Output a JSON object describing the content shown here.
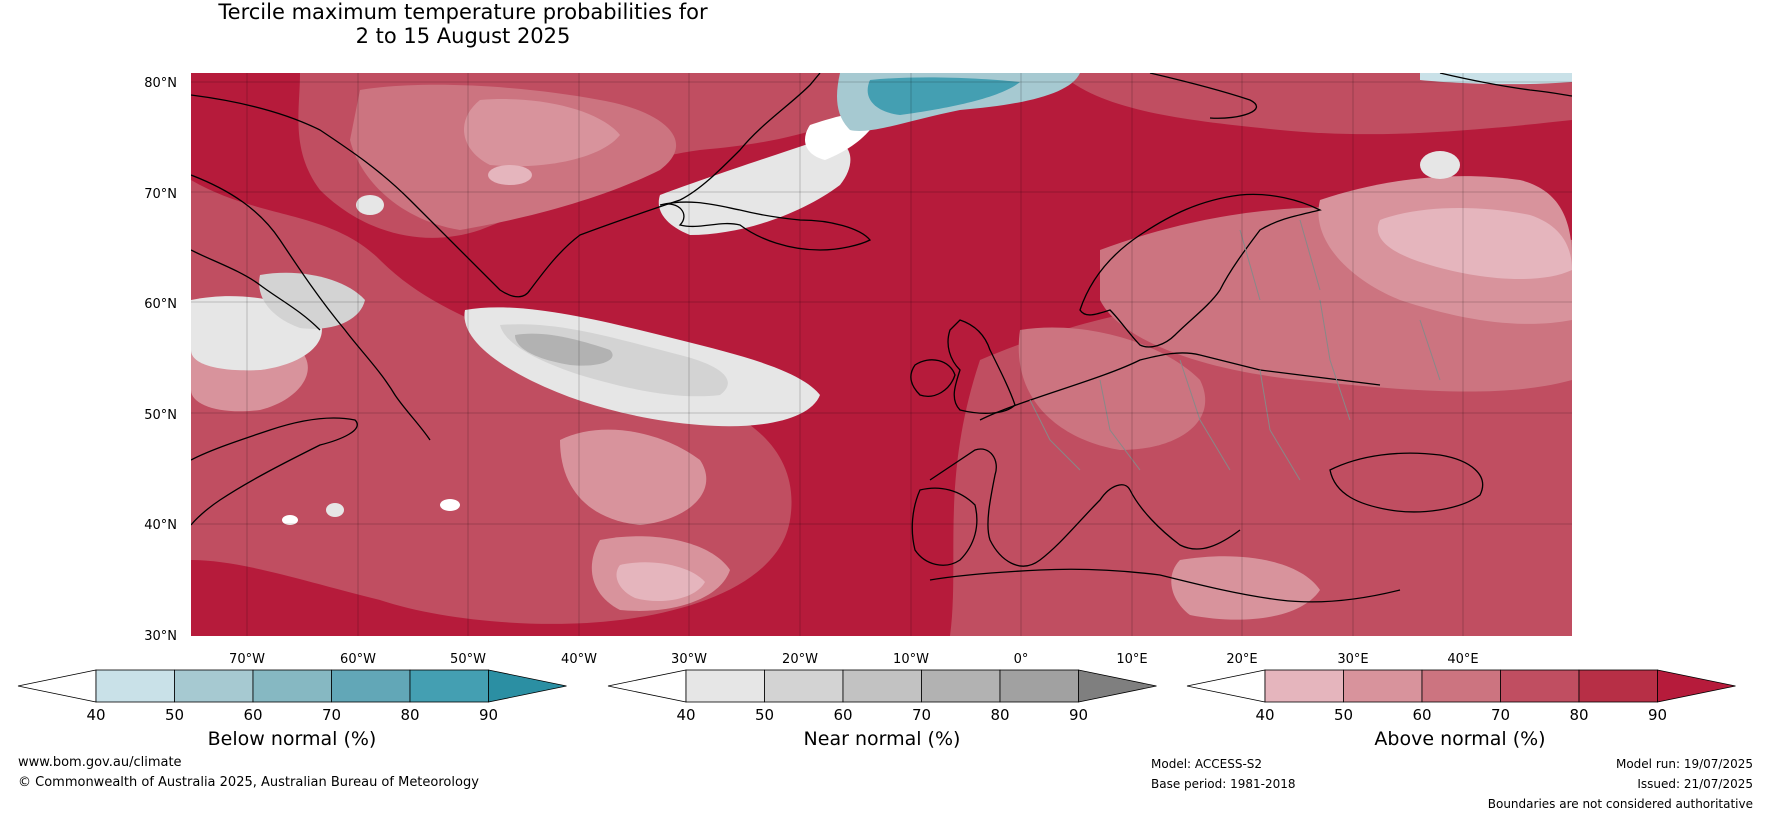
{
  "title": {
    "line1": "Tercile maximum temperature probabilities for",
    "line2": "2 to 15 August 2025"
  },
  "lat_labels": [
    "80°N",
    "70°N",
    "60°N",
    "50°N",
    "40°N",
    "30°N"
  ],
  "lon_labels": [
    "70°W",
    "60°W",
    "50°W",
    "40°W",
    "30°W",
    "20°W",
    "10°W",
    "0°",
    "10°E",
    "20°E",
    "30°E",
    "40°E"
  ],
  "colorbars": [
    {
      "label": "Below normal (%)",
      "ticks": [
        "40",
        "50",
        "60",
        "70",
        "80",
        "90"
      ],
      "colors": [
        "#ffffff",
        "#c9e1e8",
        "#a6c9d1",
        "#86b8c2",
        "#62a7b7",
        "#449fb2",
        "#2b8fa3"
      ]
    },
    {
      "label": "Near normal (%)",
      "ticks": [
        "40",
        "50",
        "60",
        "70",
        "80",
        "90"
      ],
      "colors": [
        "#ffffff",
        "#e6e6e6",
        "#d3d3d3",
        "#c2c2c2",
        "#b2b2b2",
        "#a1a1a1",
        "#7f7f7f"
      ]
    },
    {
      "label": "Above normal (%)",
      "ticks": [
        "40",
        "50",
        "60",
        "70",
        "80",
        "90"
      ],
      "colors": [
        "#ffffff",
        "#e5b5bd",
        "#d8939c",
        "#cc7480",
        "#c04e61",
        "#b72f46",
        "#b61b3b"
      ]
    }
  ],
  "footer": {
    "website": "www.bom.gov.au/climate",
    "copyright": "© Commonwealth of Australia 2025, Australian Bureau of Meteorology",
    "model": "Model: ACCESS-S2",
    "base_period": "Base period: 1981-2018",
    "model_run": "Model run: 19/07/2025",
    "issued": "Issued: 21/07/2025",
    "disclaimer": "Boundaries are not considered authoritative"
  }
}
